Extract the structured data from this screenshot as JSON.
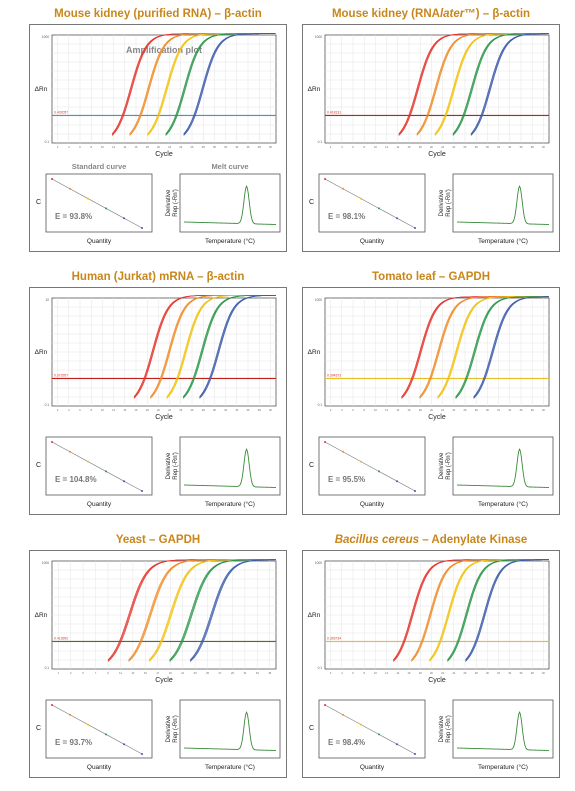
{
  "colors": {
    "title": "#c9861b",
    "series": [
      "#e5322a",
      "#f08a24",
      "#f2c10c",
      "#2a9648",
      "#3a5aaa"
    ]
  },
  "panels": [
    {
      "title_pre": "Mouse kidney (purified RNA) – β-actin",
      "title_italic": "",
      "title_post": "",
      "amp_title": "Amplification plot",
      "threshold_label": "0.402057",
      "threshold_color": "#2fa0c8",
      "y_top": "1000",
      "y_bottom": "0.1",
      "y_label": "ΔRn",
      "x_label": "Cycle",
      "x_ticks": [
        "2",
        "4",
        "6",
        "8",
        "10",
        "12",
        "14",
        "16",
        "18",
        "20",
        "22",
        "24",
        "26",
        "28",
        "30",
        "32",
        "34",
        "36",
        "38",
        "40"
      ],
      "std_title": "Standard curve",
      "melt_title": "Melt curve",
      "efficiency": "E = 93.8%",
      "quantity_label": "Quantity",
      "temperature_label": "Temperature (°C)",
      "deriv_label_1": "Derivative",
      "deriv_label_2": "Rep (-Rn')",
      "ct_label": "C",
      "chart_data": {
        "type": "line",
        "curve_x50": [
          14.5,
          17.7,
          21.0,
          24.3,
          27.6
        ],
        "plateau_log": 3.0
      }
    },
    {
      "title_pre": "Mouse kidney (RNA",
      "title_italic": "later",
      "title_post": "™) – β-actin",
      "amp_title": "",
      "threshold_label": "0.418131",
      "threshold_color": "#c0201a",
      "y_top": "1000",
      "y_bottom": "0.1",
      "y_label": "ΔRn",
      "x_label": "Cycle",
      "x_ticks": [
        "2",
        "4",
        "6",
        "8",
        "10",
        "12",
        "14",
        "16",
        "18",
        "20",
        "22",
        "24",
        "26",
        "28",
        "30",
        "32",
        "34",
        "36",
        "38",
        "40"
      ],
      "std_title": "",
      "melt_title": "",
      "efficiency": "E = 98.1%",
      "quantity_label": "Quantity",
      "temperature_label": "Temperature (°C)",
      "deriv_label_1": "Derivative",
      "deriv_label_2": "Rep (-Rn')",
      "ct_label": "C",
      "chart_data": {
        "type": "line",
        "curve_x50": [
          17.0,
          20.3,
          23.6,
          26.9,
          30.2
        ],
        "plateau_log": 3.0
      }
    },
    {
      "title_pre": "Human (Jurkat) mRNA – β-actin",
      "title_italic": "",
      "title_post": "",
      "amp_title": "",
      "threshold_label": "0.372957",
      "threshold_color": "#c0201a",
      "y_top": "10",
      "y_bottom": "0.1",
      "y_label": "ΔRn",
      "x_label": "Cycle",
      "x_ticks": [
        "2",
        "4",
        "6",
        "8",
        "10",
        "12",
        "14",
        "16",
        "18",
        "20",
        "22",
        "24",
        "26",
        "28",
        "30",
        "32",
        "34",
        "36",
        "38",
        "40"
      ],
      "std_title": "",
      "melt_title": "",
      "efficiency": "E = 104.8%",
      "quantity_label": "Quantity",
      "temperature_label": "Temperature (°C)",
      "deriv_label_1": "Derivative",
      "deriv_label_2": "Rep (-Rn')",
      "ct_label": "C",
      "chart_data": {
        "type": "line",
        "curve_x50": [
          18.5,
          21.5,
          24.5,
          27.5,
          30.5
        ],
        "plateau_log": 1.0
      }
    },
    {
      "title_pre": "Tomato leaf – GAPDH",
      "title_italic": "",
      "title_post": "",
      "amp_title": "",
      "threshold_label": "0.394373",
      "threshold_color": "#e8c02a",
      "y_top": "1000",
      "y_bottom": "0.1",
      "y_label": "ΔRn",
      "x_label": "Cycle",
      "x_ticks": [
        "2",
        "4",
        "6",
        "8",
        "10",
        "12",
        "14",
        "16",
        "18",
        "20",
        "22",
        "24",
        "26",
        "28",
        "30",
        "32",
        "34",
        "36",
        "38",
        "40"
      ],
      "std_title": "",
      "melt_title": "",
      "efficiency": "E = 95.5%",
      "quantity_label": "Quantity",
      "temperature_label": "Temperature (°C)",
      "deriv_label_1": "Derivative",
      "deriv_label_2": "Rep (-Rn')",
      "ct_label": "C",
      "chart_data": {
        "type": "line",
        "curve_x50": [
          17.5,
          20.8,
          24.1,
          27.4,
          30.7
        ],
        "plateau_log": 3.0
      }
    },
    {
      "title_pre": "Yeast – GAPDH",
      "title_italic": "",
      "title_post": "",
      "amp_title": "",
      "threshold_label": "0.413992",
      "threshold_color": "#5a6a20",
      "y_top": "1000",
      "y_bottom": "0.1",
      "y_label": "ΔRn",
      "x_label": "Cycle",
      "x_ticks": [
        "1",
        "3",
        "5",
        "7",
        "9",
        "11",
        "13",
        "15",
        "17",
        "19",
        "21",
        "23",
        "25",
        "27",
        "29",
        "31",
        "33",
        "35"
      ],
      "std_title": "",
      "melt_title": "",
      "efficiency": "E = 93.7%",
      "quantity_label": "Quantity",
      "temperature_label": "Temperature (°C)",
      "deriv_label_1": "Derivative",
      "deriv_label_2": "Rep (-Rn')",
      "ct_label": "C",
      "chart_data": {
        "type": "line",
        "curve_x50": [
          12.5,
          15.8,
          19.1,
          22.4,
          25.7
        ],
        "plateau_log": 3.0
      }
    },
    {
      "title_pre": "",
      "title_italic": "Bacillus cereus",
      "title_post": " – Adenylate Kinase",
      "amp_title": "",
      "threshold_label": "0.393734",
      "threshold_color": "#e8c02a",
      "y_top": "1000",
      "y_bottom": "0.1",
      "y_label": "ΔRn",
      "x_label": "Cycle",
      "x_ticks": [
        "2",
        "4",
        "6",
        "8",
        "10",
        "12",
        "14",
        "16",
        "18",
        "20",
        "22",
        "24",
        "26",
        "28",
        "30",
        "32",
        "34",
        "36",
        "38",
        "40"
      ],
      "std_title": "",
      "melt_title": "",
      "efficiency": "E = 98.4%",
      "quantity_label": "Quantity",
      "temperature_label": "Temperature (°C)",
      "deriv_label_1": "Derivative",
      "deriv_label_2": "Rep (-Rn')",
      "ct_label": "C",
      "chart_data": {
        "type": "line",
        "curve_x50": [
          16.0,
          19.3,
          22.6,
          25.9,
          29.2
        ],
        "plateau_log": 3.0
      }
    }
  ]
}
